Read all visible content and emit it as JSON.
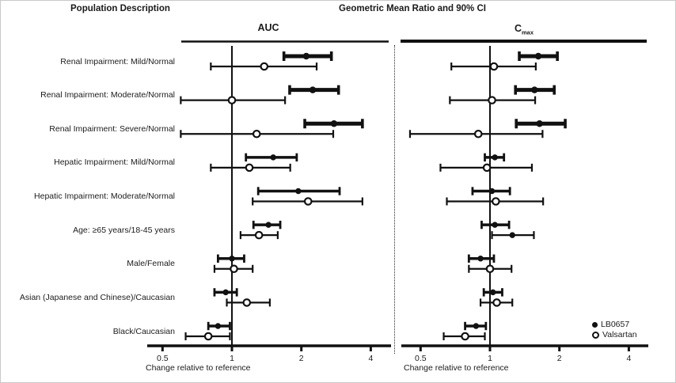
{
  "header": {
    "population_column": "Population Description",
    "title": "Geometric Mean Ratio and 90% CI"
  },
  "legend": {
    "items": [
      {
        "icon": "filled-circle",
        "label": "LB0657"
      },
      {
        "icon": "open-circle",
        "label": "Valsartan"
      }
    ]
  },
  "colors": {
    "ink": "#111111",
    "background": "#ffffff"
  },
  "chart_data": {
    "type": "scatter",
    "subtype": "forest-plot",
    "title": "Geometric Mean Ratio and 90% CI",
    "left_column_title": "Population Description",
    "xlabel": "Change relative to reference",
    "x_scale": "log2",
    "x_ticks": [
      "0.5",
      "1",
      "2",
      "4"
    ],
    "x_tick_values": [
      0.5,
      1,
      2,
      4
    ],
    "xlim": [
      0.42,
      4.6
    ],
    "reference_line": 1.0,
    "grid": false,
    "legend_position": "bottom-right",
    "series_names": [
      "LB0657",
      "Valsartan"
    ],
    "categories": [
      "Renal Impairment: Mild/Normal",
      "Renal Impairment: Moderate/Normal",
      "Renal Impairment: Severe/Normal",
      "Hepatic Impairment: Mild/Normal",
      "Hepatic Impairment: Moderate/Normal",
      "Age: ≥65 years/18-45 years",
      "Male/Female",
      "Asian (Japanese and Chinese)/Caucasian",
      "Black/Caucasian"
    ],
    "panels": [
      {
        "title": "AUC",
        "title_sub": "",
        "rows": [
          {
            "lb0657": {
              "est": 2.1,
              "lo": 1.68,
              "hi": 2.7
            },
            "valsartan": {
              "est": 1.38,
              "lo": 0.81,
              "hi": 2.33
            }
          },
          {
            "lb0657": {
              "est": 2.24,
              "lo": 1.78,
              "hi": 2.9
            },
            "valsartan": {
              "est": 1.0,
              "lo": 0.6,
              "hi": 1.7
            }
          },
          {
            "lb0657": {
              "est": 2.77,
              "lo": 2.07,
              "hi": 3.68
            },
            "valsartan": {
              "est": 1.28,
              "lo": 0.6,
              "hi": 2.75
            }
          },
          {
            "lb0657": {
              "est": 1.51,
              "lo": 1.15,
              "hi": 1.91
            },
            "valsartan": {
              "est": 1.19,
              "lo": 0.81,
              "hi": 1.79
            }
          },
          {
            "lb0657": {
              "est": 1.94,
              "lo": 1.3,
              "hi": 2.93
            },
            "valsartan": {
              "est": 2.14,
              "lo": 1.23,
              "hi": 3.68
            }
          },
          {
            "lb0657": {
              "est": 1.44,
              "lo": 1.24,
              "hi": 1.62
            },
            "valsartan": {
              "est": 1.31,
              "lo": 1.09,
              "hi": 1.58
            }
          },
          {
            "lb0657": {
              "est": 1.0,
              "lo": 0.87,
              "hi": 1.13
            },
            "valsartan": {
              "est": 1.02,
              "lo": 0.84,
              "hi": 1.23
            }
          },
          {
            "lb0657": {
              "est": 0.94,
              "lo": 0.84,
              "hi": 1.05
            },
            "valsartan": {
              "est": 1.16,
              "lo": 0.95,
              "hi": 1.46
            }
          },
          {
            "lb0657": {
              "est": 0.87,
              "lo": 0.79,
              "hi": 0.98
            },
            "valsartan": {
              "est": 0.79,
              "lo": 0.63,
              "hi": 0.98
            }
          }
        ]
      },
      {
        "title": "C",
        "title_sub": "max",
        "rows": [
          {
            "lb0657": {
              "est": 1.62,
              "lo": 1.34,
              "hi": 1.96
            },
            "valsartan": {
              "est": 1.04,
              "lo": 0.68,
              "hi": 1.58
            }
          },
          {
            "lb0657": {
              "est": 1.56,
              "lo": 1.29,
              "hi": 1.9
            },
            "valsartan": {
              "est": 1.02,
              "lo": 0.67,
              "hi": 1.57
            }
          },
          {
            "lb0657": {
              "est": 1.64,
              "lo": 1.3,
              "hi": 2.12
            },
            "valsartan": {
              "est": 0.89,
              "lo": 0.45,
              "hi": 1.69
            }
          },
          {
            "lb0657": {
              "est": 1.05,
              "lo": 0.95,
              "hi": 1.15
            },
            "valsartan": {
              "est": 0.97,
              "lo": 0.61,
              "hi": 1.52
            }
          },
          {
            "lb0657": {
              "est": 1.02,
              "lo": 0.84,
              "hi": 1.22
            },
            "valsartan": {
              "est": 1.06,
              "lo": 0.65,
              "hi": 1.7
            }
          },
          {
            "lb0657": {
              "est": 1.05,
              "lo": 0.92,
              "hi": 1.21
            },
            "valsartan": {
              "est": 1.25,
              "lo": 1.02,
              "hi": 1.55,
              "marker": "filled"
            }
          },
          {
            "lb0657": {
              "est": 0.91,
              "lo": 0.81,
              "hi": 1.04
            },
            "valsartan": {
              "est": 1.0,
              "lo": 0.81,
              "hi": 1.24
            }
          },
          {
            "lb0657": {
              "est": 1.03,
              "lo": 0.94,
              "hi": 1.13
            },
            "valsartan": {
              "est": 1.07,
              "lo": 0.91,
              "hi": 1.25
            }
          },
          {
            "lb0657": {
              "est": 0.87,
              "lo": 0.78,
              "hi": 0.96
            },
            "valsartan": {
              "est": 0.78,
              "lo": 0.63,
              "hi": 0.95
            }
          }
        ]
      }
    ]
  }
}
